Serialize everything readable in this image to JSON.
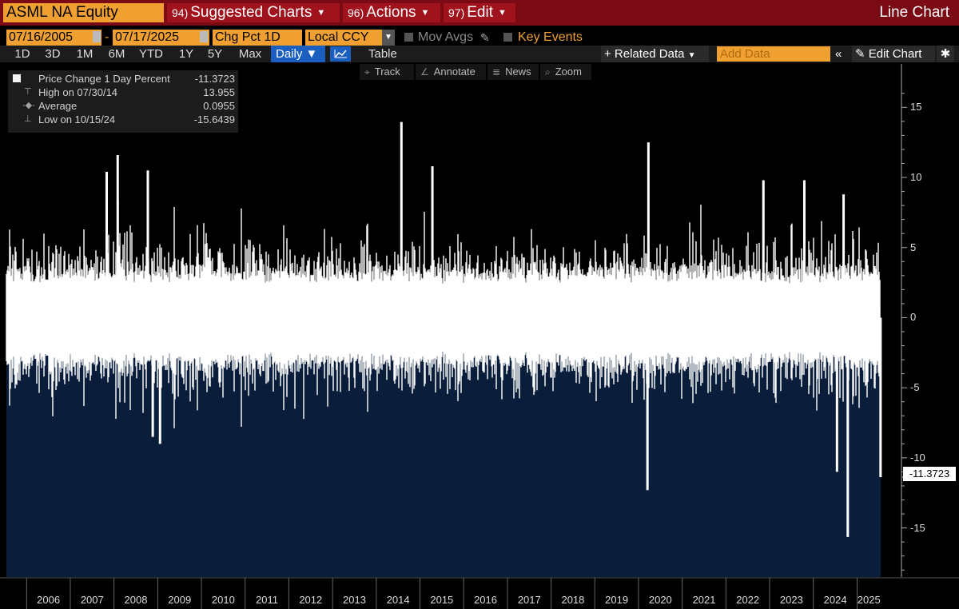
{
  "toolbar": {
    "ticker": "ASML NA Equity",
    "suggested": {
      "num": "94)",
      "label": "Suggested Charts"
    },
    "actions": {
      "num": "96)",
      "label": "Actions"
    },
    "edit": {
      "num": "97)",
      "label": "Edit"
    },
    "chart_type_label": "Line Chart"
  },
  "controls": {
    "start_date": "07/16/2005",
    "end_date": "07/17/2025",
    "field": "Chg Pct 1D",
    "currency": "Local CCY",
    "mov_avgs_label": "Mov Avgs",
    "key_events_label": "Key Events"
  },
  "periods": [
    "1D",
    "3D",
    "1M",
    "6M",
    "YTD",
    "1Y",
    "5Y",
    "Max"
  ],
  "frequency": "Daily",
  "table_label": "Table",
  "related_data_label": "+ Related Data",
  "add_data_placeholder": "Add Data",
  "edit_chart_label": "Edit Chart",
  "tools": [
    "Track",
    "Annotate",
    "News",
    "Zoom"
  ],
  "legend": {
    "series_label": "Price Change 1 Day Percent",
    "series_value": "-11.3723",
    "high_label": "High on 07/30/14",
    "high_value": "13.955",
    "avg_label": "Average",
    "avg_value": "0.0955",
    "low_label": "Low on 10/15/24",
    "low_value": "-15.6439"
  },
  "colors": {
    "background": "#000000",
    "area_fill": "#0a1e3c",
    "spike": "#ffffff",
    "accent_orange": "#f0a030",
    "toolbar_red": "#7a0a14"
  },
  "chart_data": {
    "type": "bar",
    "series": [
      {
        "name": "Price Change 1 Day Percent",
        "last_value": -11.3723
      }
    ],
    "stats": {
      "high": 13.955,
      "high_date": "07/30/14",
      "average": 0.0955,
      "low": -15.6439,
      "low_date": "10/15/24"
    },
    "last_value_label": "-11.3723",
    "x_ticks": [
      "2006",
      "2007",
      "2008",
      "2009",
      "2010",
      "2011",
      "2012",
      "2013",
      "2014",
      "2015",
      "2016",
      "2017",
      "2018",
      "2019",
      "2020",
      "2021",
      "2022",
      "2023",
      "2024",
      "2025"
    ],
    "y_ticks": [
      15,
      10,
      5,
      0,
      -5,
      -10,
      -15
    ],
    "ylim": [
      -18.5,
      16.5
    ],
    "xlim": [
      "2005-07-16",
      "2025-07-17"
    ],
    "notable_moves": [
      {
        "date": "2014-07-30",
        "value": 13.955
      },
      {
        "date": "2008-02-01",
        "value": 11.6
      },
      {
        "date": "2007-11-01",
        "value": 10.4
      },
      {
        "date": "2008-10-10",
        "value": 10.5
      },
      {
        "date": "2015-04-15",
        "value": 10.8
      },
      {
        "date": "2020-03-24",
        "value": 12.5
      },
      {
        "date": "2022-11-10",
        "value": 9.8
      },
      {
        "date": "2023-10-18",
        "value": 9.8
      },
      {
        "date": "2024-09-10",
        "value": 8.8
      },
      {
        "date": "2008-11-20",
        "value": -8.5
      },
      {
        "date": "2009-01-20",
        "value": -9.0
      },
      {
        "date": "2020-03-16",
        "value": -12.3
      },
      {
        "date": "2024-07-17",
        "value": -11.0
      },
      {
        "date": "2024-10-15",
        "value": -15.6439
      },
      {
        "date": "2025-07-16",
        "value": -11.3723
      }
    ],
    "grid": false
  }
}
